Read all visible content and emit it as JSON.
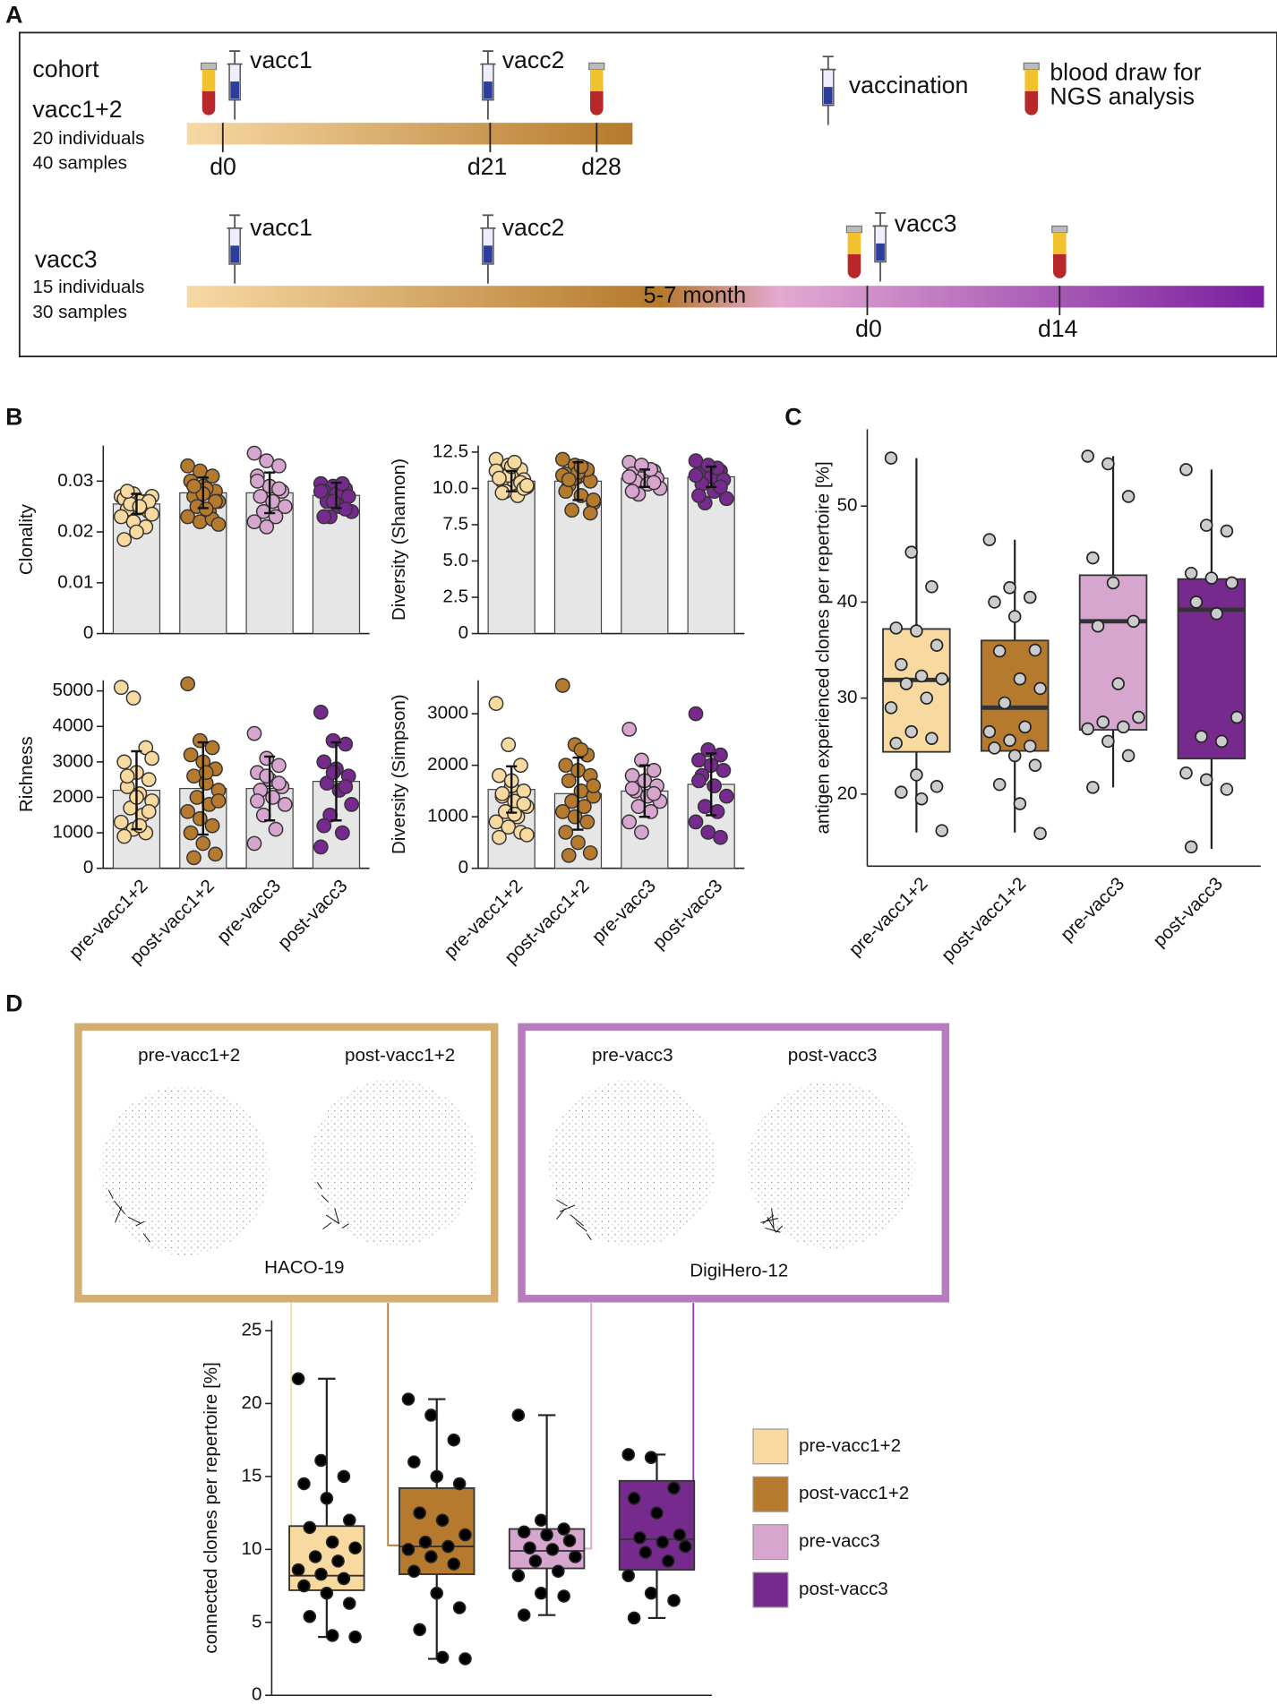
{
  "panels": [
    "A",
    "B",
    "C",
    "D"
  ],
  "timeline": {
    "labels": [
      "cohort",
      "vacc1+2",
      "20 individuals",
      "40 samples",
      "vacc1",
      "vacc2",
      "d0",
      "d21",
      "d28",
      "vaccination",
      "blood draw for",
      "NGS analysis",
      "vacc3",
      "15 individuals",
      "30 samples",
      "vacc1",
      "vacc2",
      "5-7 month",
      "vacc3",
      "d0",
      "d14"
    ]
  },
  "networks": {
    "labels": [
      "pre-vacc1+2",
      "post-vacc1+2",
      "HACO-19",
      "pre-vacc3",
      "post-vacc3",
      "DigiHero-12"
    ]
  },
  "chart_data": [
    {
      "type": "bar",
      "ylabel": "Clonality",
      "colors": [
        "#f8d9a0",
        "#b57a2e",
        "#d6a6cf",
        "#762a8e"
      ],
      "bar_color": "#e6e6e6",
      "values": [
        0.0255,
        0.0277,
        0.0277,
        0.0272
      ],
      "errors": [
        0.002,
        0.003,
        0.004,
        0.0025
      ],
      "points": [
        [
          0.027,
          0.0275,
          0.026,
          0.0265,
          0.025,
          0.024,
          0.0245,
          0.026,
          0.027,
          0.0255,
          0.025,
          0.023,
          0.022,
          0.021,
          0.0185,
          0.02,
          0.026,
          0.028,
          0.025,
          0.0235
        ],
        [
          0.033,
          0.032,
          0.031,
          0.03,
          0.029,
          0.028,
          0.027,
          0.0285,
          0.026,
          0.025,
          0.024,
          0.023,
          0.022,
          0.0225,
          0.03,
          0.0275,
          0.026,
          0.029,
          0.0245,
          0.0215
        ],
        [
          0.0355,
          0.034,
          0.033,
          0.031,
          0.029,
          0.028,
          0.027,
          0.026,
          0.025,
          0.024,
          0.023,
          0.022,
          0.021,
          0.0285,
          0.03
        ],
        [
          0.0295,
          0.029,
          0.0285,
          0.028,
          0.0275,
          0.027,
          0.026,
          0.025,
          0.024,
          0.023,
          0.0295,
          0.028,
          0.026,
          0.0245,
          0.023
        ]
      ],
      "ylim": [
        0,
        0.037
      ],
      "yticks": [
        0,
        0.01,
        0.02,
        0.03
      ]
    },
    {
      "type": "bar",
      "ylabel": "Diversity (Shannon)",
      "colors": [
        "#f8d9a0",
        "#b57a2e",
        "#d6a6cf",
        "#762a8e"
      ],
      "bar_color": "#e6e6e6",
      "values": [
        10.5,
        10.5,
        10.7,
        10.8
      ],
      "errors": [
        0.7,
        1.3,
        0.6,
        0.7
      ],
      "points": [
        [
          12,
          11.6,
          11.3,
          11,
          10.8,
          10.6,
          10.5,
          10.3,
          10.1,
          9.8,
          9.5,
          11.2,
          10.9,
          10.4,
          10.7,
          11.5,
          10,
          9.7,
          11.8,
          10.2
        ],
        [
          12,
          11.6,
          11.2,
          11,
          10.8,
          10.5,
          10.2,
          9.5,
          9,
          8.5,
          11.4,
          10.9,
          10.7,
          11.3,
          9.8,
          11.1,
          8.3,
          10.6,
          11.5,
          9.2
        ],
        [
          11.8,
          11.5,
          11.2,
          11,
          10.9,
          10.7,
          10.5,
          10.3,
          10,
          9.6,
          11.3,
          10.8,
          11.6,
          10.4,
          9.8
        ],
        [
          11.9,
          11.5,
          11.2,
          11,
          10.8,
          10.6,
          10.3,
          9.8,
          9.3,
          9,
          11.4,
          10.9,
          11.6,
          10.1,
          9.5
        ]
      ],
      "ylim": [
        0,
        12.95
      ],
      "yticks": [
        0,
        2.5,
        {
          "value": 5,
          "label": "5.0"
        },
        7.5,
        {
          "value": 10,
          "label": "10.0"
        },
        12.5
      ]
    },
    {
      "type": "bar",
      "ylabel": "Richness",
      "categories": [
        "pre-vacc1+2",
        "post-vacc1+2",
        "pre-vacc3",
        "post-vacc3"
      ],
      "colors": [
        "#f8d9a0",
        "#b57a2e",
        "#d6a6cf",
        "#762a8e"
      ],
      "bar_color": "#e6e6e6",
      "values": [
        2200,
        2250,
        2250,
        2450
      ],
      "errors": [
        1100,
        1300,
        900,
        1100
      ],
      "points": [
        [
          5100,
          4800,
          3400,
          3000,
          2700,
          2500,
          2300,
          2100,
          1900,
          1700,
          1500,
          1300,
          1100,
          1000,
          900,
          2000,
          1600,
          2600,
          1200,
          3100
        ],
        [
          5200,
          3600,
          3400,
          3200,
          3000,
          2800,
          2600,
          2400,
          2200,
          2000,
          1800,
          1600,
          1400,
          1200,
          1000,
          700,
          400,
          300,
          2700,
          1900
        ],
        [
          3800,
          3100,
          2900,
          2700,
          2500,
          2300,
          2200,
          2000,
          1800,
          1500,
          1100,
          700,
          2600,
          2400,
          1900
        ],
        [
          4400,
          3600,
          3500,
          3000,
          2800,
          2600,
          2400,
          2200,
          1800,
          1500,
          1000,
          600,
          2700,
          2300,
          1200
        ]
      ],
      "ylim": [
        0,
        5300
      ],
      "yticks": [
        0,
        1000,
        2000,
        3000,
        4000,
        5000
      ]
    },
    {
      "type": "bar",
      "ylabel": "Diversity (Simpson)",
      "categories": [
        "pre-vacc1+2",
        "post-vacc1+2",
        "pre-vacc3",
        "post-vacc3"
      ],
      "colors": [
        "#f8d9a0",
        "#b57a2e",
        "#d6a6cf",
        "#762a8e"
      ],
      "bar_color": "#e6e6e6",
      "values": [
        1530,
        1450,
        1500,
        1630
      ],
      "errors": [
        450,
        700,
        500,
        600
      ],
      "points": [
        [
          3200,
          2400,
          2000,
          1800,
          1600,
          1500,
          1400,
          1300,
          1200,
          1100,
          1000,
          900,
          800,
          700,
          600,
          1700,
          1250,
          1450,
          1050,
          650
        ],
        [
          3550,
          2400,
          2200,
          2000,
          1900,
          1800,
          1700,
          1500,
          1400,
          1300,
          1200,
          1100,
          1000,
          900,
          700,
          500,
          300,
          250,
          2300,
          1600
        ],
        [
          2700,
          2100,
          1900,
          1800,
          1700,
          1600,
          1500,
          1400,
          1300,
          1200,
          1100,
          900,
          700,
          1450,
          1550
        ],
        [
          3000,
          2300,
          2200,
          2100,
          2000,
          1900,
          1800,
          1600,
          1400,
          1200,
          1100,
          900,
          700,
          600,
          1700
        ]
      ],
      "ylim": [
        0,
        3650
      ],
      "yticks": [
        0,
        1000,
        2000,
        3000
      ]
    },
    {
      "type": "box",
      "ylabel": "antigen experienced clones per repertoire [%]",
      "categories": [
        "pre-vacc1+2",
        "post-vacc1+2",
        "pre-vacc3",
        "post-vacc3"
      ],
      "colors": [
        "#f8d9a0",
        "#b57a2e",
        "#d6a6cf",
        "#762a8e"
      ],
      "point_color": "#cccccc",
      "caps": false,
      "boxes": [
        {
          "low": 16,
          "q1": 24.4,
          "median": 31.9,
          "q3": 37.2,
          "high": 55
        },
        {
          "low": 16,
          "q1": 24.5,
          "median": 29,
          "q3": 36,
          "high": 46.5
        },
        {
          "low": 20.7,
          "q1": 26.7,
          "median": 38,
          "q3": 42.8,
          "high": 55.2
        },
        {
          "low": 14.3,
          "q1": 23.7,
          "median": 39.2,
          "q3": 42.4,
          "high": 53.8
        }
      ],
      "points": [
        [
          55,
          45.2,
          41.6,
          37.3,
          37,
          35.5,
          33.5,
          32.3,
          32,
          31.5,
          30,
          29,
          26.5,
          25.8,
          25.3,
          22,
          20.8,
          20.2,
          19.5,
          16.2
        ],
        [
          46.5,
          41.5,
          40.5,
          40,
          38.5,
          35,
          34.9,
          32,
          31,
          29.5,
          27,
          26.5,
          25.6,
          25,
          24.8,
          24,
          23,
          21,
          19,
          15.9
        ],
        [
          55.2,
          54.4,
          51,
          44.6,
          42,
          38,
          37.5,
          31.5,
          28,
          27.5,
          27,
          26.8,
          25.5,
          24,
          20.7
        ],
        [
          53.8,
          48,
          47.4,
          43,
          42.5,
          42,
          40,
          38.8,
          28,
          26,
          25.5,
          22.2,
          21.5,
          20.5,
          14.5
        ]
      ],
      "ylim": [
        12.5,
        58
      ],
      "yticks": [
        20,
        30,
        40,
        50
      ]
    },
    {
      "type": "box",
      "ylabel": "connected clones per repertoire [%]",
      "categories": [
        "pre-vacc1+2",
        "post-vacc1+2",
        "pre-vacc3",
        "post-vacc3"
      ],
      "colors": [
        "#f8d9a0",
        "#b57a2e",
        "#d6a6cf",
        "#762a8e"
      ],
      "point_color": "#000000",
      "caps": true,
      "legend": "right",
      "boxes": [
        {
          "low": 4,
          "q1": 7.2,
          "median": 8.2,
          "q3": 11.6,
          "high": 21.7
        },
        {
          "low": 2.5,
          "q1": 8.3,
          "median": 10.2,
          "q3": 14.2,
          "high": 20.3
        },
        {
          "low": 5.5,
          "q1": 8.7,
          "median": 9.9,
          "q3": 11.4,
          "high": 19.2
        },
        {
          "low": 5.3,
          "q1": 8.6,
          "median": 10.7,
          "q3": 14.7,
          "high": 16.5
        }
      ],
      "points": [
        [
          21.7,
          16.1,
          15,
          14.5,
          13.5,
          12,
          11.5,
          10.5,
          10.1,
          9.5,
          9.2,
          8.6,
          8.3,
          8,
          7.5,
          7,
          6.3,
          5.4,
          4.1,
          4
        ],
        [
          20.3,
          19.2,
          17.5,
          16,
          15,
          14.5,
          12.5,
          12,
          11,
          10.5,
          10.2,
          10,
          9.5,
          9,
          8.5,
          7,
          6,
          4.5,
          2.6,
          2.5
        ],
        [
          19.2,
          12,
          11.4,
          11.2,
          11,
          10.6,
          10.1,
          10,
          9.5,
          9.2,
          8.5,
          8.2,
          7,
          6.8,
          5.5
        ],
        [
          16.5,
          16.3,
          14.2,
          13.5,
          12.5,
          11,
          10.8,
          10.5,
          10.2,
          9.8,
          9.2,
          8.2,
          7,
          6.5,
          5.3
        ]
      ],
      "ylim": [
        0,
        25.7
      ],
      "yticks": [
        0,
        5,
        10,
        15,
        20,
        25
      ]
    }
  ]
}
